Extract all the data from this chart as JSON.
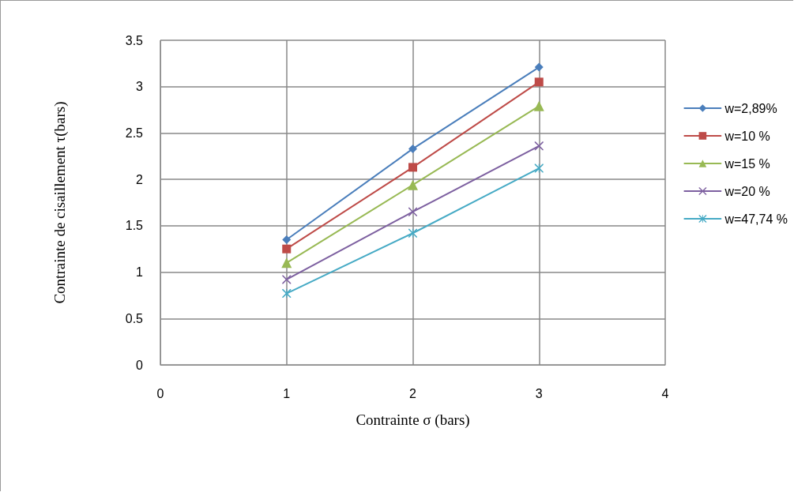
{
  "chart_data": {
    "type": "line",
    "xlabel": "Contrainte σ (bars)",
    "ylabel": "Contrainte de cisaillement τ(bars)",
    "x": [
      1,
      2,
      3
    ],
    "series": [
      {
        "name": "w=2,89%",
        "color": "#4a7ebb",
        "marker": "diamond",
        "values": [
          1.35,
          2.33,
          3.21
        ]
      },
      {
        "name": "w=10 %",
        "color": "#be4b48",
        "marker": "square",
        "values": [
          1.25,
          2.13,
          3.05
        ]
      },
      {
        "name": "w=15 %",
        "color": "#98b954",
        "marker": "triangle",
        "values": [
          1.1,
          1.94,
          2.79
        ]
      },
      {
        "name": "w=20 %",
        "color": "#7d60a0",
        "marker": "cross",
        "values": [
          0.92,
          1.65,
          2.36
        ]
      },
      {
        "name": "w=47,74 %",
        "color": "#46aac5",
        "marker": "star",
        "values": [
          0.77,
          1.42,
          2.12
        ]
      }
    ],
    "xlim": [
      0,
      4
    ],
    "xticks": [
      0,
      1,
      2,
      3,
      4
    ],
    "ylim": [
      0,
      3.5
    ],
    "yticks": [
      0,
      0.5,
      1,
      1.5,
      2,
      2.5,
      3,
      3.5
    ],
    "grid": true,
    "legend": "right",
    "line_style": "solid"
  }
}
